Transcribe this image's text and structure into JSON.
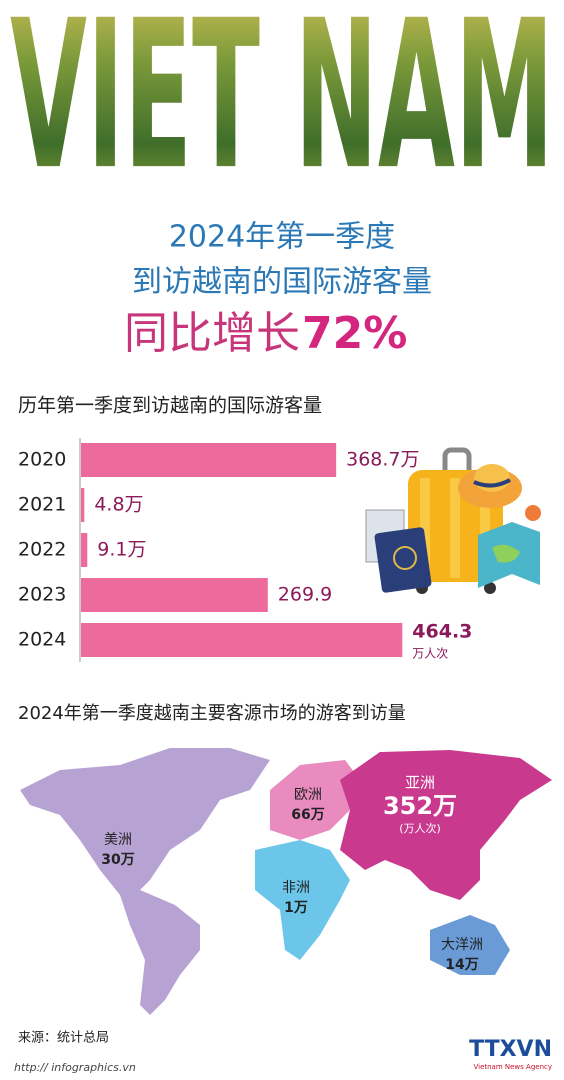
{
  "header": {
    "banner": "VIET NAM",
    "title_line1": "2024年第一季度",
    "title_line2": "到访越南的国际游客量",
    "title_line3": "同比增长",
    "title_highlight": "72%"
  },
  "chart_data": {
    "type": "bar",
    "orientation": "horizontal",
    "title": "历年第一季度到访越南的国际游客量",
    "categories": [
      "2020",
      "2021",
      "2022",
      "2023",
      "2024"
    ],
    "values": [
      368.7,
      4.8,
      9.1,
      269.9,
      464.3
    ],
    "value_labels": [
      "368.7万",
      "4.8万",
      "9.1万",
      "269.9",
      "464.3"
    ],
    "unit_label": "万人次",
    "color": "#ec6a9c",
    "xlim": [
      0,
      500
    ]
  },
  "map": {
    "title": "2024年第一季度越南主要客源市场的游客到访量",
    "regions": [
      {
        "name": "美洲",
        "value_label": "30万"
      },
      {
        "name": "欧洲",
        "value_label": "66万"
      },
      {
        "name": "亚洲",
        "value_label": "352万",
        "unit": "(万人次)"
      },
      {
        "name": "非洲",
        "value_label": "1万"
      },
      {
        "name": "大洋洲",
        "value_label": "14万"
      }
    ]
  },
  "footer": {
    "source": "来源：统计总局",
    "url": "http:// infographics.vn",
    "agency": "TTXVN",
    "agency_sub": "Vietnam News Agency"
  }
}
